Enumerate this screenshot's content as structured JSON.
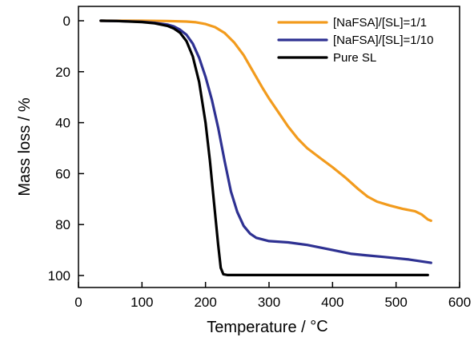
{
  "chart_data": {
    "type": "line",
    "xlabel": "Temperature / ",
    "xlabel_unit": "°C",
    "ylabel": "Mass loss / %",
    "xlim": [
      0,
      600
    ],
    "ylim": [
      0,
      105
    ],
    "y_inverted": true,
    "grid": false,
    "legend_position": "top-right",
    "x_ticks": [
      0,
      100,
      200,
      300,
      400,
      500,
      600
    ],
    "y_ticks": [
      0,
      20,
      40,
      60,
      80,
      100
    ],
    "series": [
      {
        "name": "[NaFSA]/[SL]=1/1",
        "color": "#f29b1d",
        "x": [
          35,
          60,
          100,
          140,
          170,
          185,
          200,
          215,
          230,
          245,
          260,
          275,
          290,
          300,
          315,
          330,
          345,
          350,
          360,
          380,
          400,
          420,
          440,
          455,
          470,
          490,
          510,
          530,
          540,
          550,
          555
        ],
        "y": [
          0,
          0,
          0,
          0.1,
          0.3,
          0.6,
          1.3,
          2.5,
          4.8,
          8.5,
          13.5,
          20,
          26.5,
          30.5,
          36,
          41.5,
          46.2,
          47.5,
          50,
          53.8,
          57.5,
          61.5,
          66,
          69,
          71,
          72.5,
          73.8,
          74.8,
          76,
          78,
          78.5
        ]
      },
      {
        "name": "[NaFSA]/[SL]=1/10",
        "color": "#2e3192",
        "x": [
          35,
          60,
          100,
          120,
          140,
          150,
          160,
          170,
          180,
          190,
          200,
          210,
          220,
          230,
          240,
          250,
          260,
          270,
          280,
          300,
          330,
          360,
          400,
          430,
          450,
          480,
          520,
          555
        ],
        "y": [
          0,
          0.1,
          0.4,
          0.8,
          1.5,
          2.2,
          3.5,
          5.5,
          9,
          14.5,
          22,
          31,
          42,
          55,
          67,
          75,
          80.5,
          83.5,
          85.2,
          86.5,
          87,
          88,
          90,
          91.5,
          92,
          92.7,
          93.7,
          95
        ]
      },
      {
        "name": "Pure SL",
        "color": "#000000",
        "x": [
          35,
          60,
          100,
          120,
          140,
          150,
          160,
          170,
          180,
          190,
          200,
          207,
          214,
          220,
          224,
          228,
          235,
          300,
          400,
          500,
          550
        ],
        "y": [
          0,
          0.1,
          0.5,
          1,
          2,
          3,
          4.7,
          8,
          14,
          24,
          40,
          55,
          73,
          88,
          97,
          99.5,
          99.8,
          99.8,
          99.8,
          99.8,
          99.8
        ]
      }
    ]
  }
}
